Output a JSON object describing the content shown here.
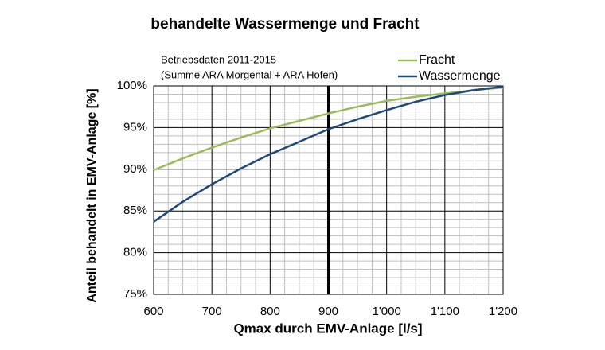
{
  "chart_data": {
    "type": "line",
    "title": "behandelte Wassermenge und Fracht",
    "annotation": [
      "Betriebsdaten 2011-2015",
      "(Summe ARA Morgental + ARA Hofen)"
    ],
    "x_label": "Qmax durch EMV-Anlage [l/s]",
    "y_label": "Anteil behandelt in EMV-Anlage [%]",
    "x": [
      600,
      650,
      700,
      750,
      800,
      850,
      900,
      950,
      1000,
      1050,
      1100,
      1150,
      1200
    ],
    "series": [
      {
        "name": "Fracht",
        "color": "#9bbb59",
        "values": [
          89.9,
          91.3,
          92.6,
          93.8,
          94.9,
          95.8,
          96.7,
          97.5,
          98.2,
          98.7,
          99.1,
          99.5,
          99.8
        ]
      },
      {
        "name": "Wassermenge",
        "color": "#1f497d",
        "values": [
          83.7,
          86.1,
          88.2,
          90.1,
          91.8,
          93.3,
          94.8,
          96.0,
          97.1,
          98.1,
          98.9,
          99.5,
          99.9
        ]
      }
    ],
    "xlim": [
      600,
      1200
    ],
    "xticks": [
      600,
      700,
      800,
      900,
      {
        "value": 1000,
        "label": "1'000"
      },
      {
        "value": 1100,
        "label": "1'100"
      },
      {
        "value": 1200,
        "label": "1'200"
      }
    ],
    "xminorticks": [
      625,
      650,
      675,
      725,
      750,
      775,
      825,
      850,
      875,
      925,
      950,
      975,
      1025,
      1050,
      1075,
      1125,
      1150,
      1175
    ],
    "ylim": [
      75,
      100
    ],
    "yticks": [
      {
        "value": 75,
        "label": "75%"
      },
      {
        "value": 80,
        "label": "80%"
      },
      {
        "value": 85,
        "label": "85%"
      },
      {
        "value": 90,
        "label": "90%"
      },
      {
        "value": 95,
        "label": "95%"
      },
      {
        "value": 100,
        "label": "100%"
      }
    ],
    "yminorticks": [
      76,
      77,
      78,
      79,
      81,
      82,
      83,
      84,
      86,
      87,
      88,
      89,
      91,
      92,
      93,
      94,
      96,
      97,
      98,
      99
    ],
    "reference_line_x": 900,
    "grid": true,
    "legend": "upper right"
  }
}
